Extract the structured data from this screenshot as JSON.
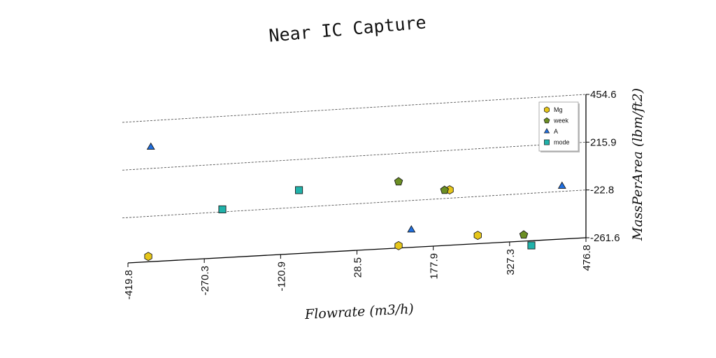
{
  "chart_data": {
    "type": "scatter",
    "title": "Near IC Capture",
    "xlabel": "Flowrate (m3/h)",
    "ylabel": "MassPerArea (lbm/ft2)",
    "xlim": [
      -419.8,
      476.8
    ],
    "ylim": [
      -261.6,
      454.6
    ],
    "x_ticks": [
      "-419.8",
      "-270.3",
      "-120.9",
      "28.5",
      "177.9",
      "327.3",
      "476.8"
    ],
    "y_ticks": [
      "-261.6",
      "-22.8",
      "215.9",
      "454.6"
    ],
    "grid": "horizontal-dashed",
    "legend_position": "top-right",
    "series": [
      {
        "name": "Mg",
        "marker": "hexagon",
        "color": "#e6c619",
        "points": [
          {
            "x": -380,
            "y": -235
          },
          {
            "x": 110,
            "y": -250
          },
          {
            "x": 210,
            "y": 15
          },
          {
            "x": 265,
            "y": -220
          }
        ]
      },
      {
        "name": "week",
        "marker": "pentagon",
        "color": "#6b8e23",
        "points": [
          {
            "x": 110,
            "y": 70
          },
          {
            "x": 200,
            "y": 15
          },
          {
            "x": 355,
            "y": -230
          }
        ]
      },
      {
        "name": "A",
        "marker": "triangle",
        "color": "#1f6fe0",
        "points": [
          {
            "x": -375,
            "y": 310
          },
          {
            "x": 135,
            "y": -175
          },
          {
            "x": 430,
            "y": 2
          }
        ]
      },
      {
        "name": "mode",
        "marker": "square",
        "color": "#20b2aa",
        "points": [
          {
            "x": -235,
            "y": -20
          },
          {
            "x": -85,
            "y": 55
          },
          {
            "x": 370,
            "y": -285
          }
        ]
      }
    ]
  }
}
